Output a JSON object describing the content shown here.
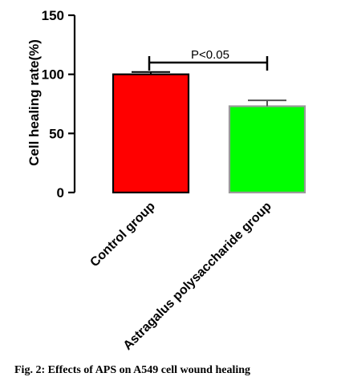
{
  "chart_data": {
    "type": "bar",
    "categories": [
      "Control group",
      "Astragalus polysaccharide group"
    ],
    "values": [
      100,
      73
    ],
    "errors": [
      2,
      5
    ],
    "colors": [
      "#ff0000",
      "#00ff00"
    ],
    "ylabel": "Cell healing rate(%)",
    "xlabel": "",
    "ylim": [
      0,
      150
    ],
    "yticks": [
      "0",
      "50",
      "100",
      "150"
    ],
    "annotation": "P<0.05",
    "grid": false,
    "legend": "none"
  },
  "caption": "Fig. 2: Effects of APS on A549 cell wound healing"
}
